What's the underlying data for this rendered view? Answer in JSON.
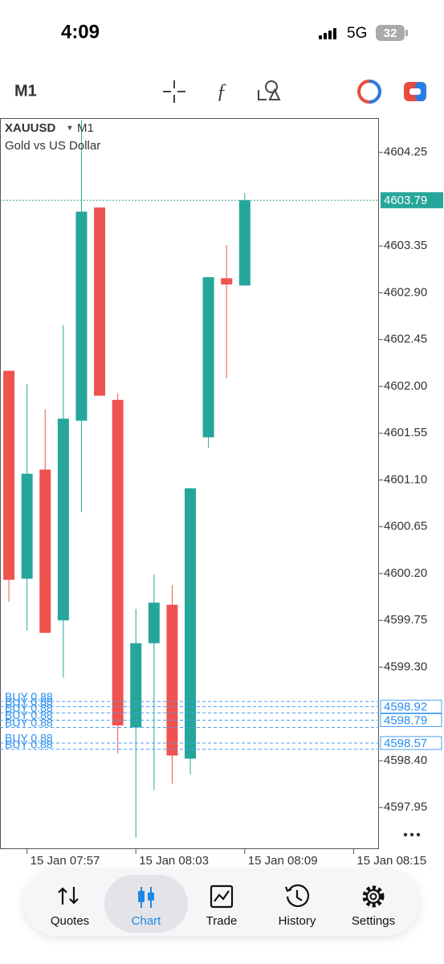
{
  "status_bar": {
    "time": "4:09",
    "network": "5G",
    "battery": "32"
  },
  "toolbar": {
    "timeframe": "M1"
  },
  "chart_data": {
    "type": "candlestick",
    "symbol": "XAUUSD",
    "timeframe": "M1",
    "subtitle": "Gold vs US Dollar",
    "up_color": "#26a69a",
    "down_color": "#ef5350",
    "open": [
      4602.15,
      4600.15,
      4601.2,
      4599.75,
      4601.67,
      4603.72,
      4601.87,
      4598.72,
      4599.53,
      4599.9,
      4598.42,
      4601.51,
      4603.04,
      4602.97
    ],
    "high": [
      4602.15,
      4602.02,
      4601.78,
      4602.59,
      4604.56,
      4603.72,
      4601.93,
      4599.86,
      4600.19,
      4600.09,
      4601.02,
      4603.05,
      4603.36,
      4603.86
    ],
    "low": [
      4599.93,
      4599.65,
      4599.63,
      4599.2,
      4600.79,
      4601.91,
      4598.47,
      4597.66,
      4598.12,
      4598.18,
      4598.27,
      4601.41,
      4602.08,
      4602.97
    ],
    "close": [
      4600.14,
      4601.16,
      4599.63,
      4601.69,
      4603.68,
      4601.91,
      4598.74,
      4599.53,
      4599.92,
      4598.45,
      4601.02,
      4603.05,
      4602.98,
      4603.79
    ],
    "xlim": [
      -0.49,
      20.4
    ],
    "xticks": [
      {
        "value": 1,
        "label": "15 Jan 07:57"
      },
      {
        "value": 7,
        "label": "15 Jan 08:03"
      },
      {
        "value": 13,
        "label": "15 Jan 08:09"
      },
      {
        "value": 19,
        "label": "15 Jan 08:15"
      }
    ],
    "ylim": [
      4597.55,
      4604.58
    ],
    "yticks": [
      4604.25,
      4603.35,
      {
        "value": 4602.9,
        "label": "4602.90"
      },
      4602.45,
      {
        "value": 4602,
        "label": "4602.00"
      },
      4601.55,
      {
        "value": 4601.1,
        "label": "4601.10"
      },
      4600.65,
      {
        "value": 4600.2,
        "label": "4600.20"
      },
      4599.75,
      {
        "value": 4599.3,
        "label": "4599.30"
      },
      {
        "value": 4598.4,
        "label": "4598.40"
      },
      4597.95
    ],
    "current_price": 4603.79,
    "orders": [
      {
        "label": "BUY 0.88",
        "price": 4598.97
      },
      {
        "label": "BUY 0.88",
        "price": 4598.92
      },
      {
        "label": "BUY 0.88",
        "price": 4598.86
      },
      {
        "label": "BUY 0.88",
        "price": 4598.79
      },
      {
        "label": "BUY 0.88",
        "price": 4598.72
      },
      {
        "label": "BUY 0.88",
        "price": 4598.57
      },
      {
        "label": "BUY 0.88",
        "price": 4598.51
      }
    ],
    "price_labels": [
      4598.92,
      4598.79,
      4598.57
    ]
  },
  "nav": [
    {
      "label": "Quotes",
      "active": false
    },
    {
      "label": "Chart",
      "active": true
    },
    {
      "label": "Trade",
      "active": false
    },
    {
      "label": "History",
      "active": false
    },
    {
      "label": "Settings",
      "active": false
    }
  ]
}
